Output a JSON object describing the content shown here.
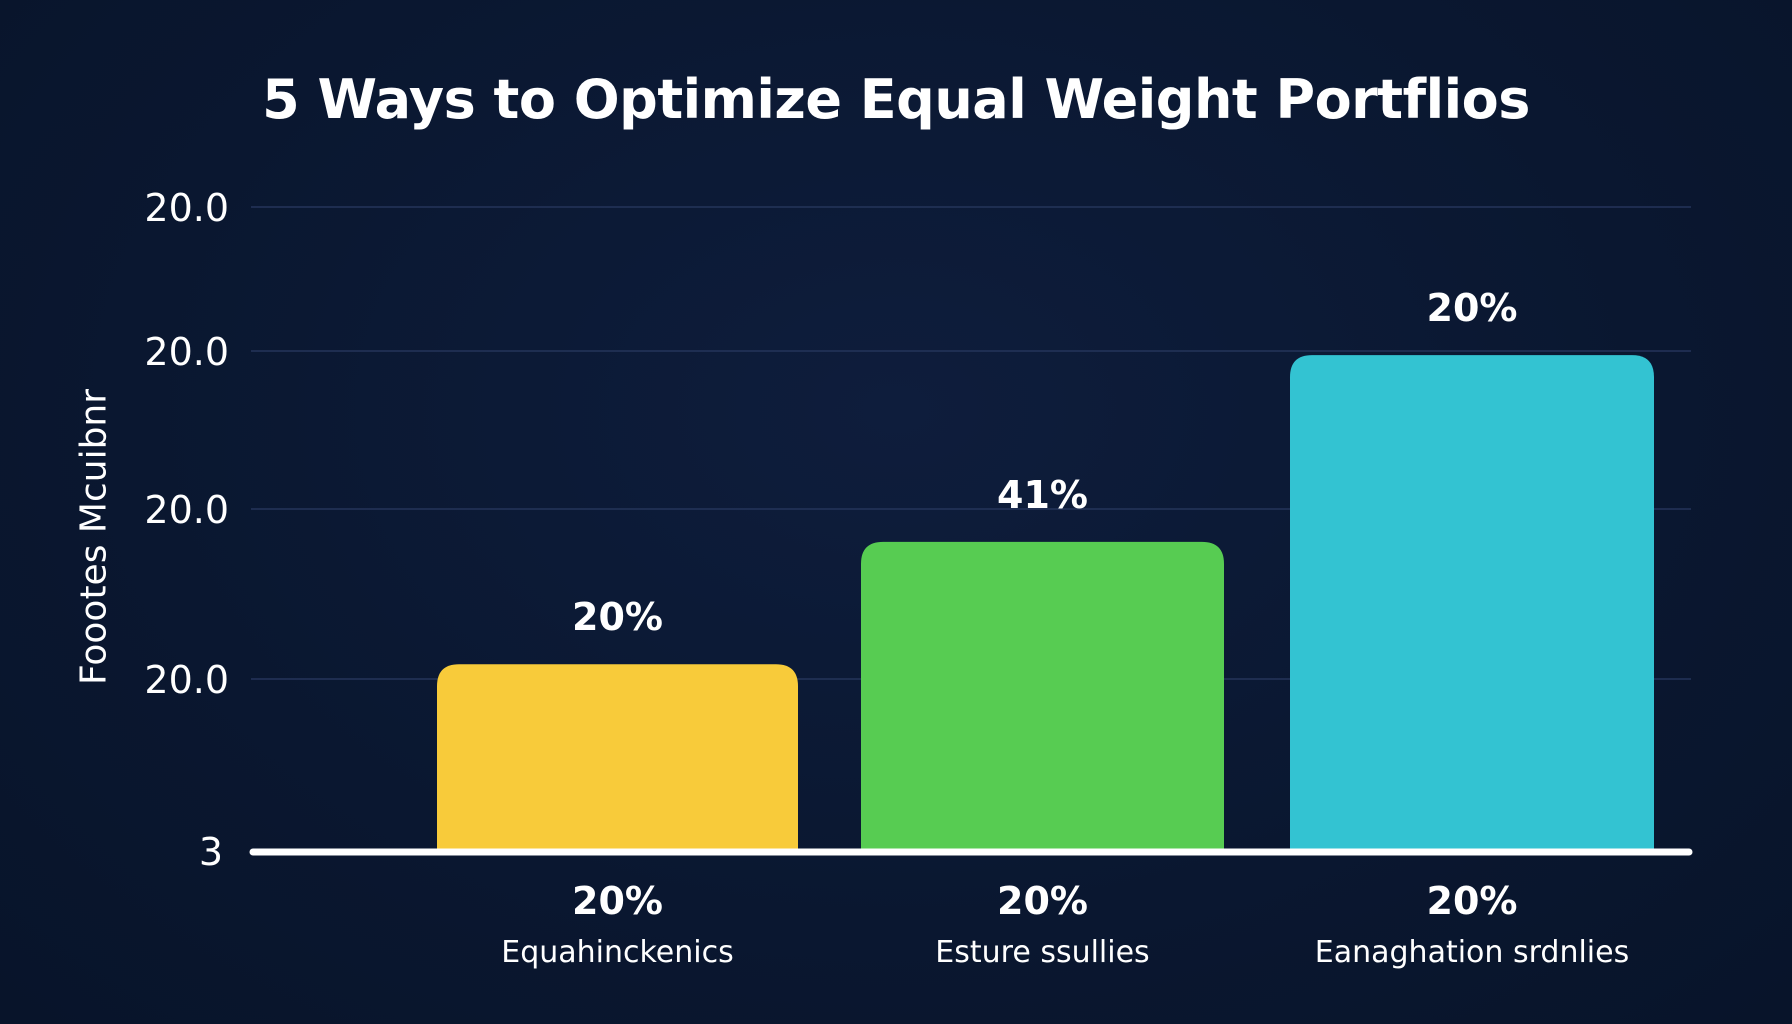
{
  "chart_data": {
    "type": "bar",
    "title": "5 Ways to Optimize Equal Weight Portflios",
    "ylabel": "Foootes Mcuibnr",
    "xlabel": "",
    "y_tick_labels": [
      "3",
      "20.0",
      "20.0",
      "20.0",
      "20.0"
    ],
    "categories": [
      "Equahinckenics",
      "Esture ssullies",
      "Eanaghation srdnlies"
    ],
    "values": [
      20,
      41,
      20
    ],
    "value_labels": [
      "20%",
      "41%",
      "20%"
    ],
    "category_value_labels": [
      "20%",
      "20%",
      "20%"
    ],
    "bar_levels": [
      0.29,
      0.48,
      0.77
    ],
    "colors": [
      "#f8cb3a",
      "#57cc52",
      "#33c3d2"
    ],
    "grid": true,
    "legend": "none",
    "background": "#0b1833"
  }
}
